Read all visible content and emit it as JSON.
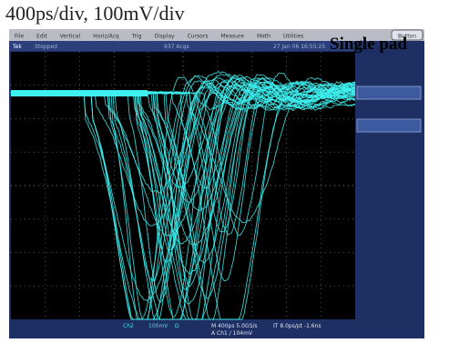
{
  "header": {
    "title": "400ps/div, 100mV/div",
    "overlay": "Single pad"
  },
  "menu": [
    "File",
    "Edit",
    "Vertical",
    "Horiz/Acq",
    "Trig",
    "Display",
    "Cursors",
    "Measure",
    "Math",
    "Utilities"
  ],
  "menu_button": "Button",
  "status": {
    "brand": "Tek",
    "state": "Stopped",
    "acqs": "937 Acqs",
    "date": "27 Jan 06 16:55:25"
  },
  "readout": {
    "channel": "Ch2",
    "scale": "100mV",
    "coupling": "Ω",
    "horizontal": "M 400ps 5.0GS/s",
    "interp": "IT 8.0ps/pt -1.6ns",
    "trigger": "A Ch1 / 104mV"
  }
}
